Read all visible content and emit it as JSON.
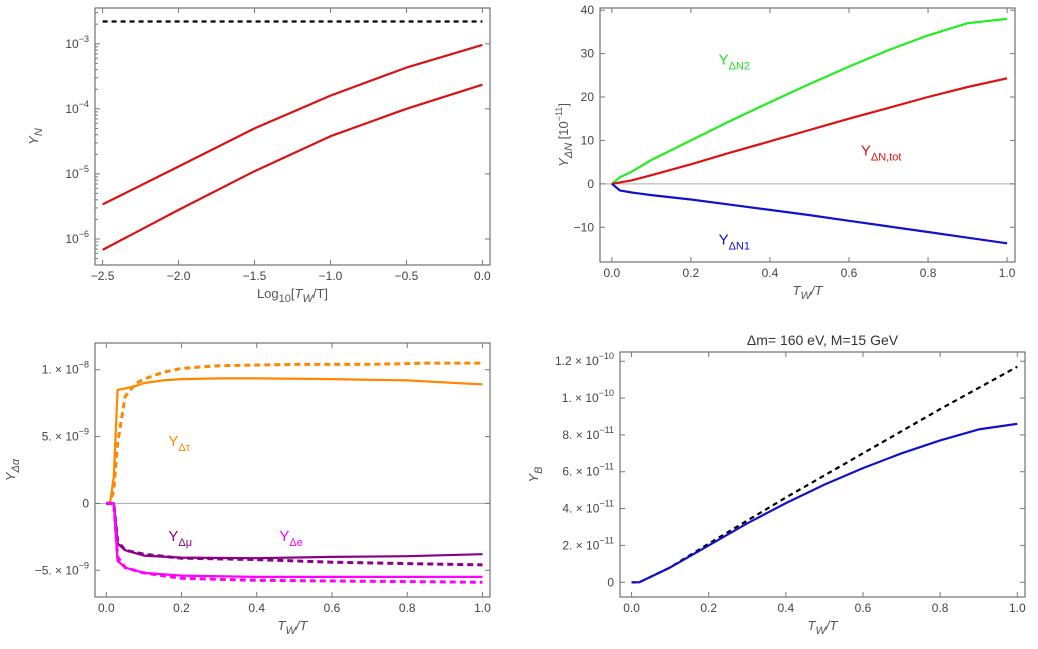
{
  "chart_data": [
    {
      "id": "p1",
      "type": "line",
      "title": "",
      "xlabel": "Log10[TW/T]",
      "ylabel": "YN",
      "xlim": [
        -2.55,
        0.05
      ],
      "ylim": [
        -6.4,
        -2.45
      ],
      "yscale": "log",
      "xticks": [
        -2.5,
        -2.0,
        -1.5,
        -1.0,
        -0.5,
        0.0
      ],
      "xtick_labels": [
        "−2.5",
        "−2.0",
        "−1.5",
        "−1.0",
        "−0.5",
        "0.0"
      ],
      "yticks": [
        -6,
        -5,
        -4,
        -3
      ],
      "ytick_labels": [
        "10",
        "10",
        "10",
        "10"
      ],
      "ytick_exponents": [
        "−6",
        "−5",
        "−4",
        "−3"
      ],
      "grid": false,
      "series": [
        {
          "color": "#000000",
          "dash": true,
          "x": [
            -2.5,
            0.0
          ],
          "y": [
            0.0022,
            0.0022
          ]
        },
        {
          "color": "#dd1111",
          "dash": false,
          "x": [
            -2.5,
            -2.0,
            -1.5,
            -1.0,
            -0.5,
            0.0
          ],
          "y": [
            3.4e-06,
            1.3e-05,
            5e-05,
            0.00016,
            0.00043,
            0.00096
          ]
        },
        {
          "color": "#dd1111",
          "dash": false,
          "x": [
            -2.5,
            -2.0,
            -1.5,
            -1.0,
            -0.5,
            0.0
          ],
          "y": [
            6.8e-07,
            2.8e-06,
            1.1e-05,
            3.8e-05,
            0.0001,
            0.000235
          ]
        }
      ],
      "annotations": []
    },
    {
      "id": "p2",
      "type": "line",
      "title": "",
      "xlabel": "TW/T",
      "ylabel": "YΔN [10−11]",
      "xlim": [
        -0.03,
        1.02
      ],
      "ylim": [
        -18,
        40.5
      ],
      "xticks": [
        0.0,
        0.2,
        0.4,
        0.6,
        0.8,
        1.0
      ],
      "xtick_labels": [
        "0.0",
        "0.2",
        "0.4",
        "0.6",
        "0.8",
        "1.0"
      ],
      "yticks": [
        -10,
        0,
        10,
        20,
        30,
        40
      ],
      "ytick_labels": [
        "−10",
        "0",
        "10",
        "20",
        "30",
        "40"
      ],
      "zero_line": true,
      "grid": false,
      "series": [
        {
          "color": "#22ee22",
          "dash": false,
          "x": [
            0.0,
            0.02,
            0.05,
            0.1,
            0.2,
            0.3,
            0.4,
            0.5,
            0.6,
            0.7,
            0.8,
            0.9,
            1.0
          ],
          "y": [
            0.0,
            1.5,
            2.8,
            5.5,
            10.0,
            14.5,
            18.8,
            23.0,
            27.0,
            30.8,
            34.2,
            37.0,
            38.0
          ]
        },
        {
          "color": "#dd1111",
          "dash": false,
          "x": [
            0.0,
            0.05,
            0.1,
            0.2,
            0.3,
            0.4,
            0.5,
            0.6,
            0.7,
            0.8,
            0.9,
            1.0
          ],
          "y": [
            0.0,
            0.8,
            2.0,
            4.5,
            7.2,
            9.8,
            12.4,
            15.0,
            17.5,
            20.0,
            22.3,
            24.3
          ]
        },
        {
          "color": "#1111cc",
          "dash": false,
          "x": [
            0.0,
            0.02,
            0.05,
            0.1,
            0.2,
            0.3,
            0.4,
            0.5,
            0.6,
            0.7,
            0.8,
            0.9,
            1.0
          ],
          "y": [
            0.0,
            -1.5,
            -2.0,
            -2.6,
            -3.6,
            -4.8,
            -6.0,
            -7.2,
            -8.5,
            -9.8,
            -11.1,
            -12.4,
            -13.7
          ]
        }
      ],
      "annotations": [
        {
          "text": "Y",
          "sub": "ΔN2",
          "color": "#22dd22",
          "x": 0.27,
          "y": 27.5
        },
        {
          "text": "Y",
          "sub": "ΔN,tot",
          "color": "#dd1111",
          "x": 0.63,
          "y": 6.5
        },
        {
          "text": "Y",
          "sub": "ΔN1",
          "color": "#1111cc",
          "x": 0.27,
          "y": -14.0
        }
      ]
    },
    {
      "id": "p3",
      "type": "line",
      "title": "",
      "xlabel": "TW/T",
      "ylabel": "YΔα",
      "xlim": [
        -0.03,
        1.02
      ],
      "ylim": [
        -7.0,
        12.0
      ],
      "yscale_factor": "1e-9",
      "xticks": [
        0.0,
        0.2,
        0.4,
        0.6,
        0.8,
        1.0
      ],
      "xtick_labels": [
        "0.0",
        "0.2",
        "0.4",
        "0.6",
        "0.8",
        "1.0"
      ],
      "yticks": [
        -5,
        0,
        5,
        10
      ],
      "ytick_labels": [
        "−5. × 10",
        "0",
        "5. × 10",
        "1. × 10"
      ],
      "ytick_exponents": [
        "−9",
        "",
        "−9",
        "−8"
      ],
      "zero_line": true,
      "grid": false,
      "series": [
        {
          "color": "#ff8800",
          "dash": true,
          "x": [
            0.0,
            0.01,
            0.02,
            0.03,
            0.05,
            0.08,
            0.1,
            0.15,
            0.2,
            0.3,
            0.5,
            0.7,
            0.85,
            1.0
          ],
          "y": [
            0.0,
            0.0,
            1.0,
            4.5,
            8.0,
            9.0,
            9.3,
            9.8,
            10.1,
            10.3,
            10.4,
            10.4,
            10.5,
            10.5
          ]
        },
        {
          "color": "#ff8800",
          "dash": false,
          "x": [
            0.0,
            0.01,
            0.02,
            0.03,
            0.05,
            0.08,
            0.1,
            0.15,
            0.2,
            0.3,
            0.4,
            0.6,
            0.8,
            1.0
          ],
          "y": [
            0.0,
            0.0,
            2.0,
            8.5,
            8.6,
            8.8,
            9.0,
            9.2,
            9.3,
            9.35,
            9.35,
            9.3,
            9.2,
            8.9
          ]
        },
        {
          "color": "#880088",
          "dash": true,
          "x": [
            0.0,
            0.02,
            0.03,
            0.05,
            0.1,
            0.2,
            0.4,
            0.6,
            0.8,
            1.0
          ],
          "y": [
            0.0,
            0.0,
            -2.8,
            -3.5,
            -3.8,
            -4.1,
            -4.2,
            -4.4,
            -4.5,
            -4.6
          ]
        },
        {
          "color": "#880088",
          "dash": false,
          "x": [
            0.0,
            0.02,
            0.03,
            0.05,
            0.1,
            0.2,
            0.4,
            0.6,
            0.8,
            1.0
          ],
          "y": [
            0.0,
            0.0,
            -3.0,
            -3.5,
            -3.9,
            -4.05,
            -4.1,
            -4.0,
            -3.95,
            -3.8
          ]
        },
        {
          "color": "#ff00ff",
          "dash": true,
          "x": [
            0.0,
            0.02,
            0.03,
            0.05,
            0.1,
            0.2,
            0.4,
            0.6,
            0.8,
            1.0
          ],
          "y": [
            0.0,
            0.0,
            -4.0,
            -4.8,
            -5.2,
            -5.6,
            -5.75,
            -5.8,
            -5.85,
            -5.9
          ]
        },
        {
          "color": "#ff00ff",
          "dash": false,
          "x": [
            0.0,
            0.02,
            0.03,
            0.05,
            0.1,
            0.2,
            0.4,
            0.6,
            0.8,
            1.0
          ],
          "y": [
            0.0,
            0.0,
            -4.3,
            -4.8,
            -5.2,
            -5.4,
            -5.5,
            -5.5,
            -5.5,
            -5.5
          ]
        }
      ],
      "annotations": [
        {
          "text": "Y",
          "sub": "Δτ",
          "color": "#ff8800",
          "x": 0.165,
          "y": 4.3
        },
        {
          "text": "Y",
          "sub": "Δμ",
          "color": "#880088",
          "x": 0.165,
          "y": -2.8
        },
        {
          "text": "Y",
          "sub": "Δe",
          "color": "#ff00ff",
          "x": 0.46,
          "y": -2.8
        }
      ]
    },
    {
      "id": "p4",
      "type": "line",
      "title": "Δm= 160 eV, M=15 GeV",
      "xlabel": "TW/T",
      "ylabel": "YB",
      "xlim": [
        -0.03,
        1.02
      ],
      "ylim": [
        -0.8,
        12.5
      ],
      "yscale_factor": "1e-11",
      "xticks": [
        0.0,
        0.2,
        0.4,
        0.6,
        0.8,
        1.0
      ],
      "xtick_labels": [
        "0.0",
        "0.2",
        "0.4",
        "0.6",
        "0.8",
        "1.0"
      ],
      "yticks": [
        0,
        2,
        4,
        6,
        8,
        10,
        12
      ],
      "ytick_labels": [
        "0",
        "2. × 10",
        "4. × 10",
        "6. × 10",
        "8. × 10",
        "1. × 10",
        "1.2 × 10"
      ],
      "ytick_exponents": [
        "",
        "−11",
        "−11",
        "−11",
        "−11",
        "−10",
        "−10"
      ],
      "grid": false,
      "series": [
        {
          "color": "#000000",
          "dash": true,
          "x": [
            0.0,
            0.02,
            0.05,
            0.1,
            0.2,
            0.4,
            0.6,
            0.8,
            1.0
          ],
          "y": [
            0.0,
            0.0,
            0.3,
            0.8,
            2.1,
            4.6,
            7.0,
            9.4,
            11.7
          ]
        },
        {
          "color": "#1111cc",
          "dash": false,
          "x": [
            0.0,
            0.02,
            0.05,
            0.1,
            0.2,
            0.3,
            0.4,
            0.5,
            0.6,
            0.7,
            0.8,
            0.9,
            1.0
          ],
          "y": [
            0.0,
            0.0,
            0.3,
            0.8,
            2.0,
            3.2,
            4.3,
            5.3,
            6.2,
            7.0,
            7.7,
            8.3,
            8.6
          ]
        }
      ],
      "annotations": []
    }
  ]
}
